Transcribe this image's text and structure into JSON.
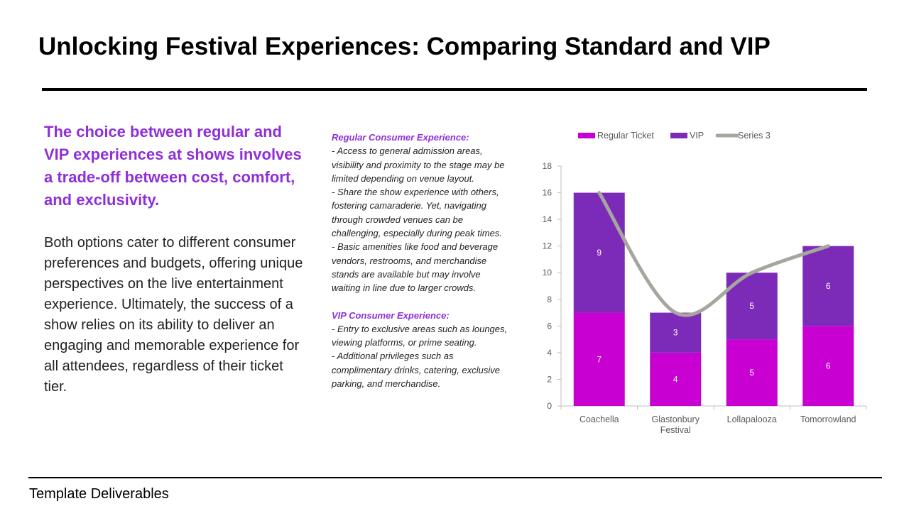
{
  "slide": {
    "title": "Unlocking Festival Experiences: Comparing Standard and VIP",
    "lead": "The choice between regular and VIP experiences at shows involves a trade-off between cost, comfort, and exclusivity.",
    "body": "Both options cater to different consumer preferences and budgets, offering unique perspectives on the live entertainment experience. Ultimately, the success of a show relies on its ability to deliver an engaging and memorable experience for all attendees, regardless of their ticket tier.",
    "footer": "Template Deliverables"
  },
  "notes": {
    "regular_heading": "Regular Consumer  Experience:",
    "regular_items": [
      "- Access to general admission areas, visibility and proximity to the stage may be limited depending on venue layout.",
      "- Share the show experience with others, fostering camaraderie. Yet, navigating through  crowded venues can be challenging, especially during peak times.",
      "- Basic amenities like food and beverage vendors, restrooms, and merchandise stands are available but may involve waiting in line due to larger crowds."
    ],
    "vip_heading": "VIP Consumer  Experience:",
    "vip_items": [
      "- Entry to exclusive areas such as lounges, viewing platforms, or prime seating.",
      "- Additional privileges such as complimentary drinks, catering, exclusive parking, and merchandise."
    ]
  },
  "colors": {
    "accent_purple": "#8f2fd8",
    "regular": "#c800d2",
    "vip": "#7c2bb8",
    "series3": "#a6a69e"
  },
  "chart_data": {
    "type": "bar",
    "stacked": true,
    "categories": [
      "Coachella",
      "Glastonbury Festival",
      "Lollapalooza",
      "Tomorrowland"
    ],
    "series": [
      {
        "name": "Regular Ticket",
        "type": "bar",
        "values": [
          7,
          4,
          5,
          6
        ]
      },
      {
        "name": "VIP",
        "type": "bar",
        "values": [
          9,
          3,
          5,
          6
        ]
      },
      {
        "name": "Series 3",
        "type": "line",
        "smooth": true,
        "values": [
          16,
          7,
          10,
          12
        ]
      }
    ],
    "ylim": [
      0,
      18
    ],
    "yticks": [
      0,
      2,
      4,
      6,
      8,
      10,
      12,
      14,
      16,
      18
    ],
    "legend": "top",
    "grid": false,
    "title": "",
    "xlabel": "",
    "ylabel": ""
  }
}
